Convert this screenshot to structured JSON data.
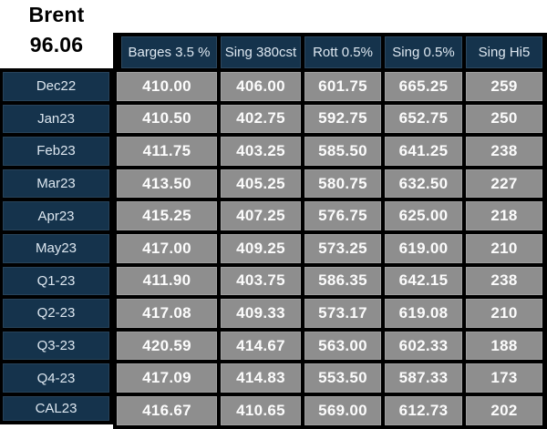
{
  "brand": {
    "title": "Brent",
    "price": "96.06"
  },
  "board": {
    "columns": [
      "Barges 3.5 %",
      "Sing 380cst",
      "Rott 0.5%",
      "Sing 0.5%",
      "Sing Hi5"
    ],
    "rows": [
      {
        "label": "Dec22",
        "values": [
          "410.00",
          "406.00",
          "601.75",
          "665.25",
          "259"
        ]
      },
      {
        "label": "Jan23",
        "values": [
          "410.50",
          "402.75",
          "592.75",
          "652.75",
          "250"
        ]
      },
      {
        "label": "Feb23",
        "values": [
          "411.75",
          "403.25",
          "585.50",
          "641.25",
          "238"
        ]
      },
      {
        "label": "Mar23",
        "values": [
          "413.50",
          "405.25",
          "580.75",
          "632.50",
          "227"
        ]
      },
      {
        "label": "Apr23",
        "values": [
          "415.25",
          "407.25",
          "576.75",
          "625.00",
          "218"
        ]
      },
      {
        "label": "May23",
        "values": [
          "417.00",
          "409.25",
          "573.25",
          "619.00",
          "210"
        ]
      },
      {
        "label": "Q1-23",
        "values": [
          "411.90",
          "403.75",
          "586.35",
          "642.15",
          "238"
        ]
      },
      {
        "label": "Q2-23",
        "values": [
          "417.08",
          "409.33",
          "573.17",
          "619.08",
          "210"
        ]
      },
      {
        "label": "Q3-23",
        "values": [
          "420.59",
          "414.67",
          "563.00",
          "602.33",
          "188"
        ]
      },
      {
        "label": "Q4-23",
        "values": [
          "417.09",
          "414.83",
          "553.50",
          "587.33",
          "173"
        ]
      },
      {
        "label": "CAL23",
        "values": [
          "416.67",
          "410.65",
          "569.00",
          "612.73",
          "202"
        ]
      }
    ]
  },
  "colors": {
    "navy": "#15334c",
    "cell_gray": "#8e8e8e",
    "border_black": "#000000",
    "text_light": "#dde7f0",
    "value_white": "#fcfcfc"
  }
}
